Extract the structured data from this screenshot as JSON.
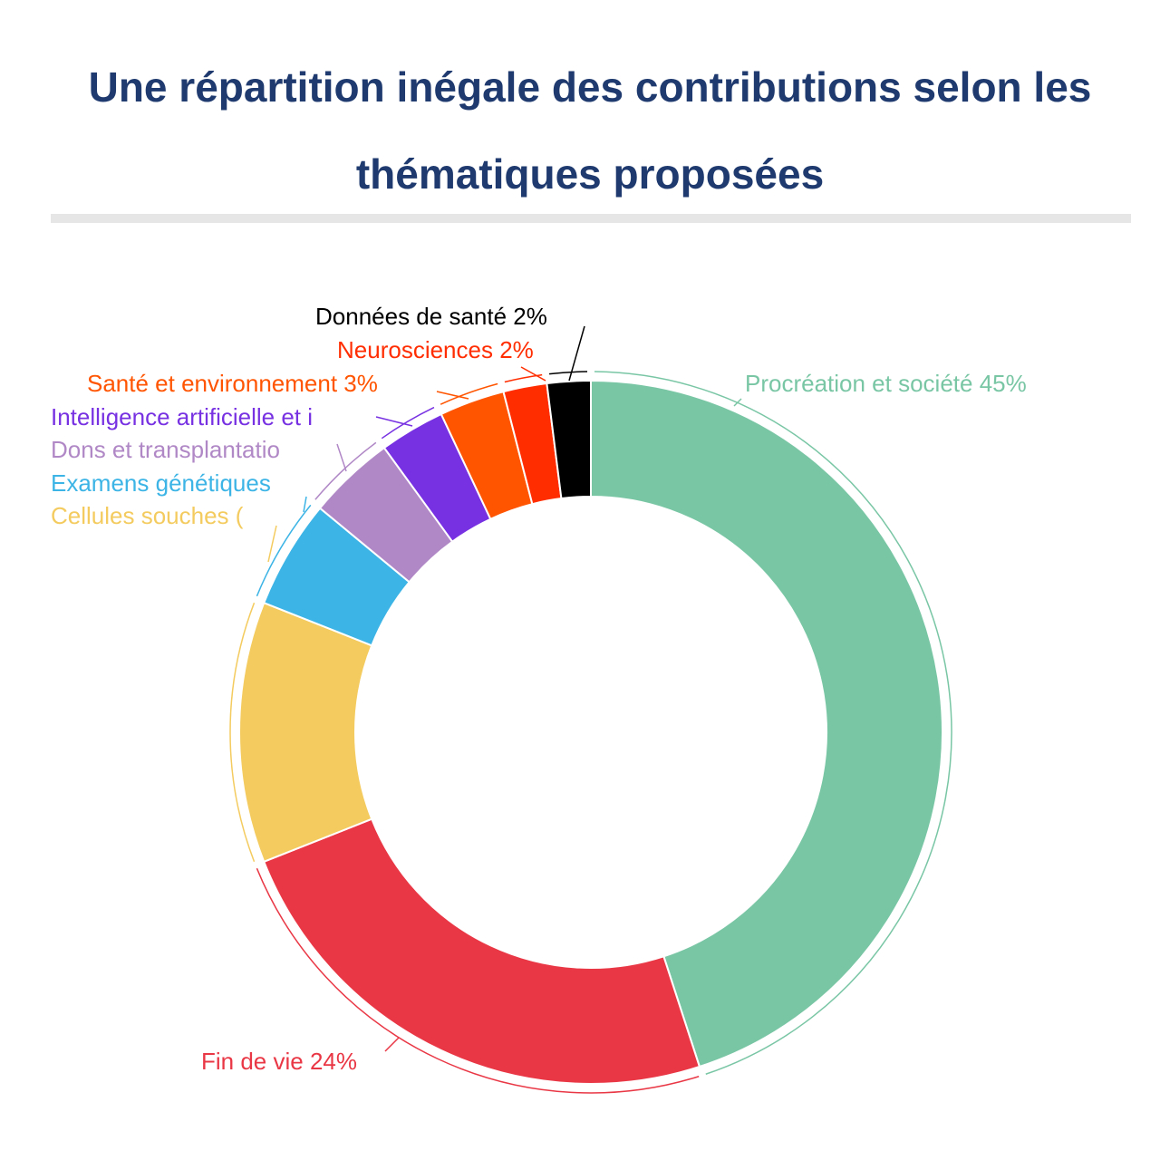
{
  "title": "Une répartition inégale des contributions selon les thématiques proposées",
  "chart_data": {
    "type": "pie",
    "donut": true,
    "slices": [
      {
        "label": "Procréation et société 45%",
        "value": 45,
        "color": "#79c6a5"
      },
      {
        "label": "Fin de vie 24%",
        "value": 24,
        "color": "#e93745"
      },
      {
        "label": "Cellules souches (",
        "value": 12,
        "color": "#f3cb5f"
      },
      {
        "label": "Examens génétiques",
        "value": 5,
        "color": "#3cb4e5"
      },
      {
        "label": "Dons et transplantatio",
        "value": 4,
        "color": "#b088c6"
      },
      {
        "label": "Intelligence artificielle et i",
        "value": 3,
        "color": "#7731e2"
      },
      {
        "label": "Santé et environnement 3%",
        "value": 3,
        "color": "#ff5400"
      },
      {
        "label": "Neurosciences 2%",
        "value": 2,
        "color": "#ff2d00"
      },
      {
        "label": "Données de santé 2%",
        "value": 2,
        "color": "#000000"
      }
    ]
  }
}
